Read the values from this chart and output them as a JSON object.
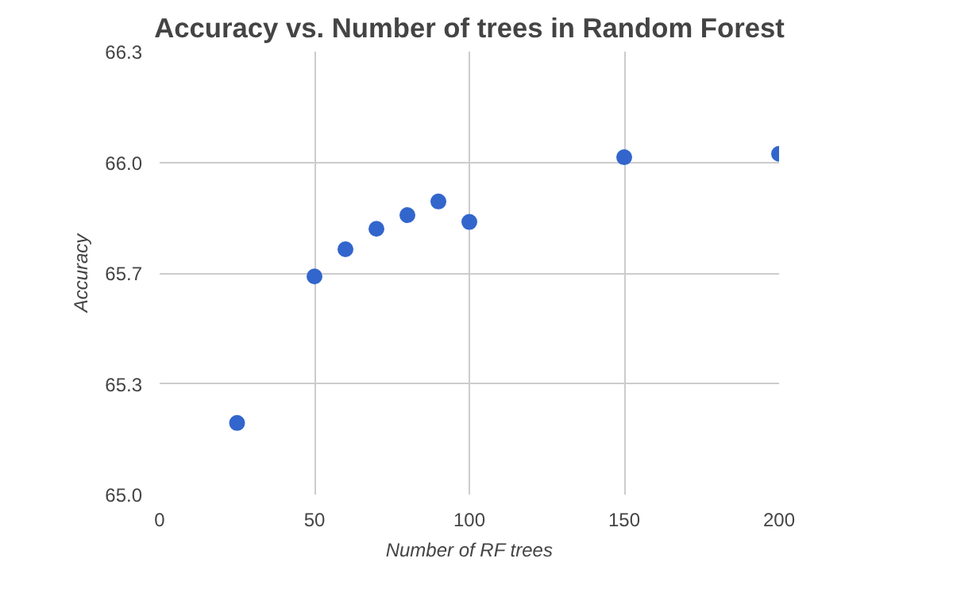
{
  "chart_data": {
    "type": "scatter",
    "title": "Accuracy vs. Number of trees in Random Forest",
    "xlabel": "Number of RF trees",
    "ylabel": "Accuracy",
    "x": [
      25,
      50,
      60,
      70,
      80,
      90,
      100,
      150,
      200
    ],
    "series": [
      {
        "color": "#3366cc",
        "values": [
          65.21,
          65.64,
          65.72,
          65.78,
          65.82,
          65.86,
          65.8,
          65.99,
          66.0
        ]
      }
    ],
    "xlim": [
      0,
      200
    ],
    "xticks": [
      0,
      50,
      100,
      150,
      200
    ],
    "ylim": [
      65.0,
      66.3
    ],
    "yticks": [
      {
        "value": 65.0,
        "label": "65.0"
      },
      {
        "value": 65.325,
        "label": "65.3"
      },
      {
        "value": 65.65,
        "label": "65.7"
      },
      {
        "value": 65.975,
        "label": "66.0"
      },
      {
        "value": 66.3,
        "label": "66.3"
      }
    ],
    "grid": true,
    "marker": "circle"
  }
}
